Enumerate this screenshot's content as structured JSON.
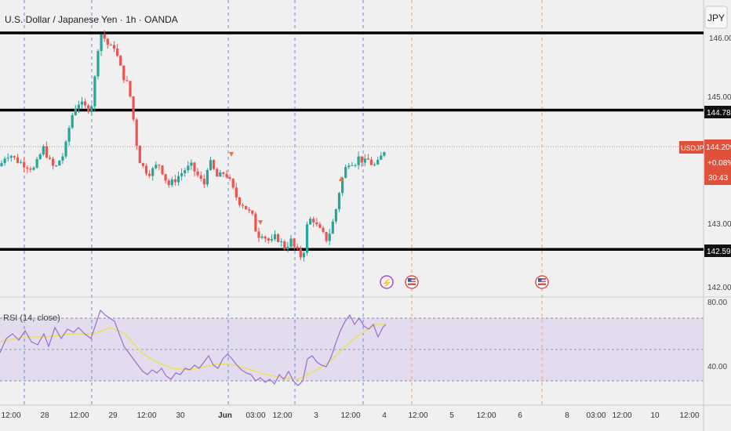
{
  "header": {
    "symbol_title": "U.S. Dollar / Japanese Yen · 1h · OANDA",
    "currency_button": "JPY"
  },
  "colors": {
    "up": "#26a69a",
    "down": "#ef5350",
    "price_tag": "#e0503a",
    "rsi_line": "#9c6bd0",
    "rsi_ma": "#e9e34a",
    "rsi_band": "#e3dcef",
    "grid_dash": "#6a8fd8",
    "event_dash": "#f0a070",
    "background": "#f0f0f0"
  },
  "price_scale": {
    "ticks": [
      "145.000",
      "143.000",
      "142.000"
    ],
    "top_partial": "146.000"
  },
  "levels": [
    {
      "price": 146.0,
      "label": ""
    },
    {
      "price": 144.784,
      "label": "144.784"
    },
    {
      "price": 142.59,
      "label": "142.590"
    }
  ],
  "current": {
    "symbol": "USDJPY",
    "price": "144.209",
    "change": "+0.08%",
    "countdown": "30:43",
    "value": 144.209
  },
  "rsi": {
    "label": "RSI (14, close)",
    "ticks": [
      "80.00",
      "40.00"
    ],
    "top": 70,
    "bottom": 30,
    "mid": 50
  },
  "time_axis": {
    "labels": [
      "12:00",
      "28",
      "12:00",
      "29",
      "12:00",
      "30",
      "Jun",
      "03:00",
      "12:00",
      "3",
      "12:00",
      "4",
      "12:00",
      "5",
      "12:00",
      "6",
      "8",
      "03:00",
      "12:00",
      "10",
      "12:00"
    ]
  },
  "events": [
    {
      "icon": "lightning-icon",
      "symbol": "⚡"
    },
    {
      "icon": "us-flag-icon",
      "symbol": ""
    },
    {
      "icon": "us-flag-icon",
      "symbol": ""
    }
  ],
  "chart_data": {
    "type": "candlestick",
    "title": "U.S. Dollar / Japanese Yen · 1h · OANDA",
    "y_range": [
      141.75,
      146.3
    ],
    "horizontal_levels": [
      146.0,
      144.784,
      142.59
    ],
    "close_path": [
      [
        0,
        143.9
      ],
      [
        6,
        144.05
      ],
      [
        12,
        144.1
      ],
      [
        20,
        144.0
      ],
      [
        28,
        143.95
      ],
      [
        36,
        143.9
      ],
      [
        44,
        143.85
      ],
      [
        50,
        144.05
      ],
      [
        56,
        144.2
      ],
      [
        62,
        144.0
      ],
      [
        70,
        143.85
      ],
      [
        76,
        144.0
      ],
      [
        82,
        144.1
      ],
      [
        88,
        144.5
      ],
      [
        94,
        144.8
      ],
      [
        100,
        144.9
      ],
      [
        106,
        144.85
      ],
      [
        112,
        144.8
      ],
      [
        118,
        144.9
      ],
      [
        124,
        145.7
      ],
      [
        128,
        146.0
      ],
      [
        134,
        145.9
      ],
      [
        140,
        145.75
      ],
      [
        146,
        145.8
      ],
      [
        150,
        145.6
      ],
      [
        156,
        145.35
      ],
      [
        162,
        145.2
      ],
      [
        168,
        144.9
      ],
      [
        172,
        144.4
      ],
      [
        178,
        144.0
      ],
      [
        184,
        143.85
      ],
      [
        190,
        143.8
      ],
      [
        196,
        143.85
      ],
      [
        202,
        143.95
      ],
      [
        208,
        143.8
      ],
      [
        214,
        143.6
      ],
      [
        220,
        143.65
      ],
      [
        228,
        143.75
      ],
      [
        236,
        143.85
      ],
      [
        244,
        143.9
      ],
      [
        252,
        143.75
      ],
      [
        260,
        143.6
      ],
      [
        266,
        144.0
      ],
      [
        272,
        143.85
      ],
      [
        278,
        143.7
      ],
      [
        284,
        143.8
      ],
      [
        290,
        143.75
      ],
      [
        298,
        143.5
      ],
      [
        304,
        143.35
      ],
      [
        310,
        143.3
      ],
      [
        316,
        143.2
      ],
      [
        322,
        143.1
      ],
      [
        328,
        142.8
      ],
      [
        334,
        142.85
      ],
      [
        340,
        142.75
      ],
      [
        346,
        142.7
      ],
      [
        352,
        142.8
      ],
      [
        358,
        142.7
      ],
      [
        364,
        142.6
      ],
      [
        370,
        142.75
      ],
      [
        376,
        142.6
      ],
      [
        382,
        142.5
      ],
      [
        386,
        142.45
      ],
      [
        392,
        143.0
      ],
      [
        398,
        143.1
      ],
      [
        404,
        142.95
      ],
      [
        410,
        142.85
      ],
      [
        416,
        142.75
      ],
      [
        422,
        142.9
      ],
      [
        428,
        143.2
      ],
      [
        434,
        143.6
      ],
      [
        440,
        143.85
      ],
      [
        446,
        144.0
      ],
      [
        452,
        143.95
      ],
      [
        458,
        144.05
      ],
      [
        464,
        143.95
      ],
      [
        470,
        144.0
      ],
      [
        476,
        143.9
      ],
      [
        482,
        143.95
      ],
      [
        488,
        144.1
      ],
      [
        492,
        144.21
      ]
    ],
    "rsi_series": [
      [
        0,
        48
      ],
      [
        8,
        57
      ],
      [
        16,
        60
      ],
      [
        24,
        56
      ],
      [
        32,
        62
      ],
      [
        40,
        55
      ],
      [
        48,
        53
      ],
      [
        56,
        60
      ],
      [
        62,
        52
      ],
      [
        70,
        64
      ],
      [
        78,
        57
      ],
      [
        86,
        63
      ],
      [
        94,
        61
      ],
      [
        100,
        64
      ],
      [
        108,
        60
      ],
      [
        116,
        57
      ],
      [
        122,
        66
      ],
      [
        128,
        75
      ],
      [
        134,
        72
      ],
      [
        140,
        70
      ],
      [
        146,
        68
      ],
      [
        152,
        60
      ],
      [
        158,
        52
      ],
      [
        164,
        48
      ],
      [
        170,
        44
      ],
      [
        176,
        40
      ],
      [
        182,
        36
      ],
      [
        188,
        34
      ],
      [
        194,
        37
      ],
      [
        200,
        35
      ],
      [
        206,
        38
      ],
      [
        212,
        33
      ],
      [
        218,
        31
      ],
      [
        224,
        35
      ],
      [
        230,
        34
      ],
      [
        236,
        38
      ],
      [
        242,
        37
      ],
      [
        248,
        40
      ],
      [
        254,
        38
      ],
      [
        260,
        42
      ],
      [
        266,
        46
      ],
      [
        272,
        40
      ],
      [
        278,
        38
      ],
      [
        284,
        44
      ],
      [
        290,
        47
      ],
      [
        296,
        44
      ],
      [
        302,
        40
      ],
      [
        308,
        37
      ],
      [
        314,
        35
      ],
      [
        320,
        34
      ],
      [
        326,
        30
      ],
      [
        332,
        32
      ],
      [
        338,
        29
      ],
      [
        344,
        31
      ],
      [
        350,
        28
      ],
      [
        356,
        34
      ],
      [
        362,
        31
      ],
      [
        368,
        36
      ],
      [
        374,
        30
      ],
      [
        380,
        27
      ],
      [
        386,
        30
      ],
      [
        392,
        44
      ],
      [
        398,
        46
      ],
      [
        404,
        42
      ],
      [
        410,
        40
      ],
      [
        416,
        39
      ],
      [
        422,
        45
      ],
      [
        428,
        54
      ],
      [
        434,
        62
      ],
      [
        440,
        68
      ],
      [
        446,
        72
      ],
      [
        452,
        66
      ],
      [
        458,
        70
      ],
      [
        464,
        65
      ],
      [
        470,
        63
      ],
      [
        476,
        66
      ],
      [
        482,
        58
      ],
      [
        488,
        64
      ],
      [
        492,
        66
      ]
    ],
    "rsi_ma_series": [
      [
        0,
        55
      ],
      [
        30,
        58
      ],
      [
        60,
        58
      ],
      [
        90,
        60
      ],
      [
        120,
        60
      ],
      [
        140,
        64
      ],
      [
        160,
        60
      ],
      [
        180,
        48
      ],
      [
        200,
        42
      ],
      [
        220,
        38
      ],
      [
        240,
        37
      ],
      [
        260,
        39
      ],
      [
        280,
        41
      ],
      [
        300,
        40
      ],
      [
        320,
        37
      ],
      [
        340,
        34
      ],
      [
        360,
        32
      ],
      [
        380,
        31
      ],
      [
        400,
        36
      ],
      [
        420,
        42
      ],
      [
        440,
        52
      ],
      [
        460,
        60
      ],
      [
        480,
        66
      ],
      [
        492,
        66
      ]
    ]
  }
}
